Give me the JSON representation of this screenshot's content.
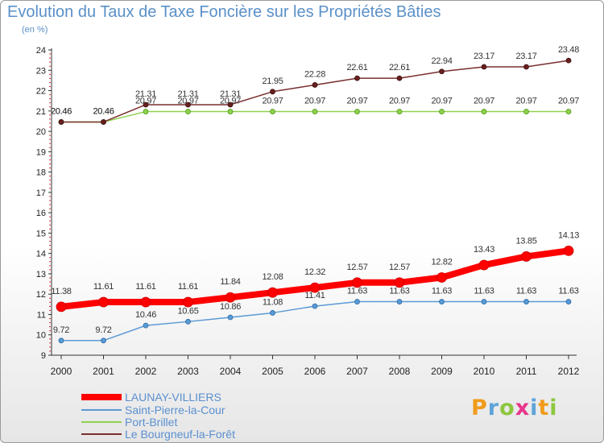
{
  "title": "Evolution du Taux de Taxe Foncière sur les Propriétés Bâties",
  "unit_label": "(en %)",
  "logo": "Proxiti",
  "chart_data": {
    "type": "line",
    "x": [
      "2000",
      "2001",
      "2002",
      "2003",
      "2004",
      "2005",
      "2006",
      "2007",
      "2008",
      "2009",
      "2010",
      "2011",
      "2012"
    ],
    "ylim": [
      9,
      24
    ],
    "yticks": [
      "9",
      "10",
      "11",
      "12",
      "13",
      "14",
      "15",
      "16",
      "17",
      "18",
      "19",
      "20",
      "21",
      "22",
      "23",
      "24"
    ],
    "grid": false,
    "legend": "bottom-left",
    "series": [
      {
        "name": "LAUNAY-VILLIERS",
        "color": "#ff0000",
        "values": [
          11.38,
          11.61,
          11.61,
          11.61,
          11.84,
          12.08,
          12.32,
          12.57,
          12.57,
          12.82,
          13.43,
          13.85,
          14.13
        ],
        "labels": [
          "11.38",
          "11.61",
          "11.61",
          "11.61",
          "11.84",
          "12.08",
          "12.32",
          "12.57",
          "12.57",
          "12.82",
          "13.43",
          "13.85",
          "14.13"
        ]
      },
      {
        "name": "Saint-Pierre-la-Cour",
        "color": "#5b9bd5",
        "values": [
          9.72,
          9.72,
          10.46,
          10.65,
          10.86,
          11.08,
          11.41,
          11.63,
          11.63,
          11.63,
          11.63,
          11.63,
          11.63
        ],
        "labels": [
          "9.72",
          "9.72",
          "10.46",
          "10.65",
          "10.86",
          "11.08",
          "11.41",
          "11.63",
          "11.63",
          "11.63",
          "11.63",
          "11.63",
          "11.63"
        ]
      },
      {
        "name": "Port-Brillet",
        "color": "#8fd14f",
        "values": [
          20.46,
          20.46,
          20.97,
          20.97,
          20.97,
          20.97,
          20.97,
          20.97,
          20.97,
          20.97,
          20.97,
          20.97,
          20.97
        ],
        "labels": [
          "20.46",
          "20.46",
          "20.97",
          "20.97",
          "20.97",
          "20.97",
          "20.97",
          "20.97",
          "20.97",
          "20.97",
          "20.97",
          "20.97",
          "20.97"
        ]
      },
      {
        "name": "Le Bourgneuf-la-Forêt",
        "color": "#7a2e2e",
        "values": [
          20.46,
          20.46,
          21.31,
          21.31,
          21.31,
          21.95,
          22.28,
          22.61,
          22.61,
          22.94,
          23.17,
          23.17,
          23.48
        ],
        "labels": [
          "20.46",
          "20.46",
          "21.31",
          "21.31",
          "21.31",
          "21.95",
          "22.28",
          "22.61",
          "22.61",
          "22.94",
          "23.17",
          "23.17",
          "23.48"
        ]
      }
    ]
  }
}
